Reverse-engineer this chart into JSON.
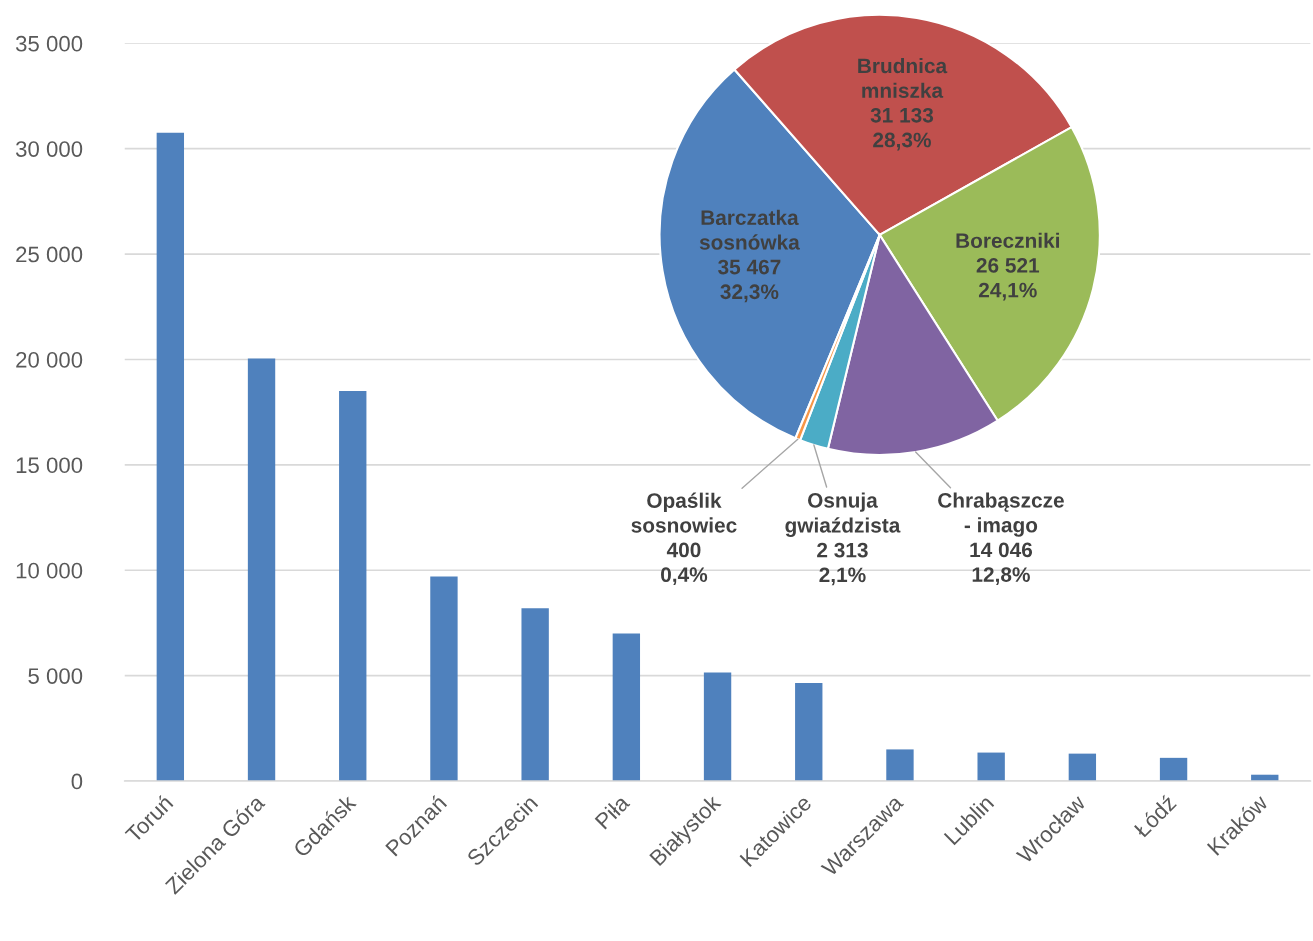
{
  "chart_data": [
    {
      "type": "bar",
      "categories": [
        "Toruń",
        "Zielona Góra",
        "Gdańsk",
        "Poznań",
        "Szczecin",
        "Piła",
        "Białystok",
        "Katowice",
        "Warszawa",
        "Lublin",
        "Wrocław",
        "Łódź",
        "Kraków"
      ],
      "values": [
        30750,
        20050,
        18500,
        9700,
        8200,
        7000,
        5150,
        4650,
        1500,
        1350,
        1300,
        1100,
        300
      ],
      "color": "#4f81bd",
      "ylim": [
        0,
        35000
      ],
      "yticks": [
        0,
        {
          "value": 5000,
          "label": "5 000"
        },
        {
          "value": 10000,
          "label": "10 000"
        },
        {
          "value": 15000,
          "label": "15 000"
        },
        {
          "value": 20000,
          "label": "20 000"
        },
        {
          "value": 25000,
          "label": "25 000"
        },
        {
          "value": 30000,
          "label": "30 000"
        },
        {
          "value": 35000,
          "label": "35 000"
        }
      ],
      "grid": "y"
    },
    {
      "type": "pie",
      "categories": [
        "Barczatka\nsosnówka",
        "Brudnica\nmniszka",
        "Boreczniki",
        "Chrabąszcze\n- imago",
        "Osnuja\ngwiaździsta",
        "Opaślik\nsosnowiec"
      ],
      "values": [
        35467,
        31133,
        26521,
        14046,
        2313,
        400
      ],
      "colors": [
        "#4f81bd",
        "#c0504d",
        "#9bbb59",
        "#8064a2",
        "#4bacc6",
        "#f79646"
      ],
      "value_labels": [
        "35 467\n32,3%",
        "31 133\n28,3%",
        "26 521\n24,1%",
        "14 046\n12,8%",
        "2 313\n2,1%",
        "400\n0,4%"
      ]
    }
  ]
}
